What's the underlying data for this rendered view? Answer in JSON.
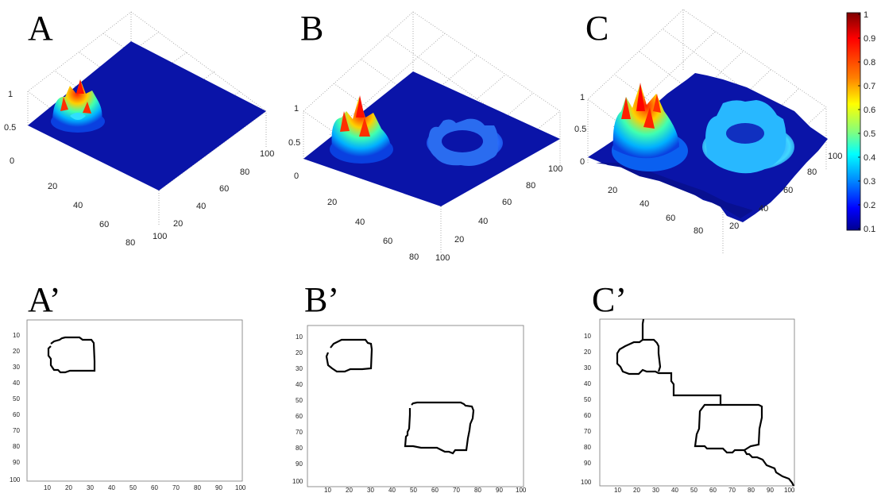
{
  "figure": {
    "panels_3d": [
      {
        "label": "A",
        "z_ticks": [
          "0",
          "0.5",
          "1"
        ],
        "x_ticks": [
          "20",
          "40",
          "60",
          "80",
          "100"
        ],
        "y_ticks": [
          "20",
          "40",
          "60",
          "80",
          "100"
        ]
      },
      {
        "label": "B",
        "z_ticks": [
          "0",
          "0.5",
          "1"
        ],
        "x_ticks": [
          "20",
          "40",
          "60",
          "80",
          "100"
        ],
        "y_ticks": [
          "20",
          "40",
          "60",
          "80",
          "100"
        ]
      },
      {
        "label": "C",
        "z_ticks": [
          "0",
          "0.5",
          "1"
        ],
        "x_ticks": [
          "20",
          "40",
          "60",
          "80"
        ],
        "y_ticks": [
          "20",
          "40",
          "60",
          "80",
          "100"
        ]
      }
    ],
    "panels_2d": [
      {
        "label": "A’",
        "x_ticks": [
          "10",
          "20",
          "30",
          "40",
          "50",
          "60",
          "70",
          "80",
          "90",
          "100"
        ],
        "y_ticks": [
          "10",
          "20",
          "30",
          "40",
          "50",
          "60",
          "70",
          "80",
          "90",
          "100"
        ]
      },
      {
        "label": "B’",
        "x_ticks": [
          "10",
          "20",
          "30",
          "40",
          "50",
          "60",
          "70",
          "80",
          "90",
          "100"
        ],
        "y_ticks": [
          "10",
          "20",
          "30",
          "40",
          "50",
          "60",
          "70",
          "80",
          "90",
          "100"
        ]
      },
      {
        "label": "C’",
        "x_ticks": [
          "10",
          "20",
          "30",
          "40",
          "50",
          "60",
          "70",
          "80",
          "90",
          "100"
        ],
        "y_ticks": [
          "10",
          "20",
          "30",
          "40",
          "50",
          "60",
          "70",
          "80",
          "90",
          "100"
        ]
      }
    ],
    "colorbar": {
      "ticks": [
        "1",
        "0.9",
        "0.8",
        "0.7",
        "0.6",
        "0.5",
        "0.4",
        "0.3",
        "0.2",
        "0.1"
      ],
      "colors": [
        "#7f0000",
        "#ff0000",
        "#ff8000",
        "#ffff00",
        "#80ff80",
        "#00ffff",
        "#0080ff",
        "#0000ff",
        "#00008f"
      ]
    },
    "colors": {
      "surface_base": "#0a14a8",
      "contour": "#000000"
    }
  }
}
